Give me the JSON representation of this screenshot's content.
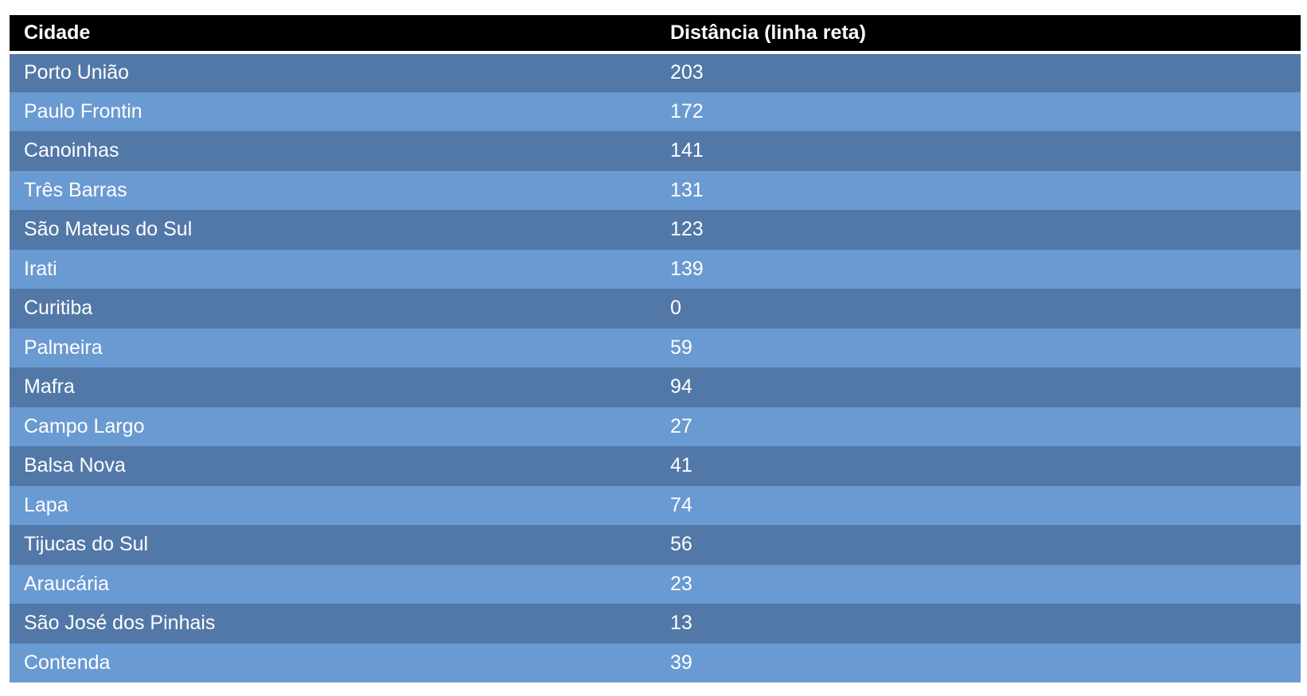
{
  "table": {
    "headers": [
      "Cidade",
      "Distância (linha reta)"
    ],
    "rows": [
      [
        "Porto União",
        "203"
      ],
      [
        "Paulo Frontin",
        "172"
      ],
      [
        "Canoinhas",
        "141"
      ],
      [
        "Três Barras",
        "131"
      ],
      [
        "São Mateus do Sul",
        "123"
      ],
      [
        "Irati",
        "139"
      ],
      [
        "Curitiba",
        "0"
      ],
      [
        "Palmeira",
        "59"
      ],
      [
        "Mafra",
        "94"
      ],
      [
        "Campo Largo",
        "27"
      ],
      [
        "Balsa Nova",
        "41"
      ],
      [
        "Lapa",
        "74"
      ],
      [
        "Tijucas do Sul",
        "56"
      ],
      [
        "Araucária",
        "23"
      ],
      [
        "São José dos Pinhais",
        "13"
      ],
      [
        "Contenda",
        "39"
      ]
    ]
  },
  "colors": {
    "header_bg": "#000000",
    "row_dark": "#5278a8",
    "row_light": "#6a9ad2",
    "text": "#ffffff"
  }
}
